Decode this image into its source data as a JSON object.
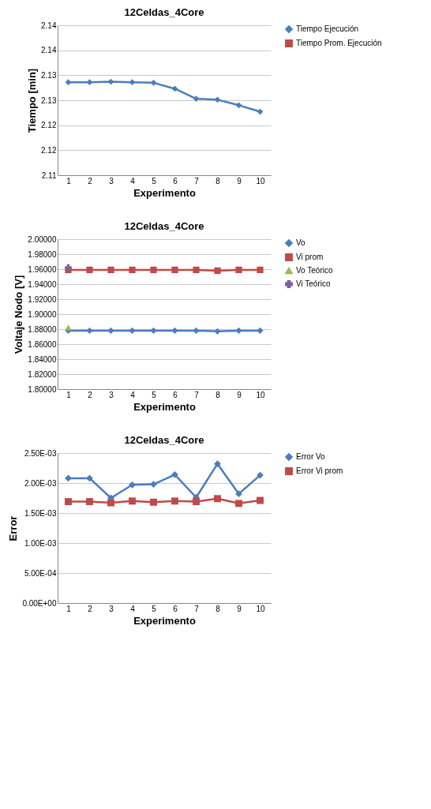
{
  "chart_data": [
    {
      "type": "line",
      "title": "12Celdas_4Core",
      "xlabel": "Experimento",
      "ylabel": "Tiempo [min]",
      "categories": [
        "1",
        "2",
        "3",
        "4",
        "5",
        "6",
        "7",
        "8",
        "9",
        "10"
      ],
      "ylim": [
        2.11,
        2.14
      ],
      "yticks": [
        {
          "value": 2.11,
          "label": "2.11"
        },
        {
          "value": 2.115,
          "label": "2.12"
        },
        {
          "value": 2.12,
          "label": "2.12"
        },
        {
          "value": 2.125,
          "label": "2.13"
        },
        {
          "value": 2.13,
          "label": "2.13"
        },
        {
          "value": 2.135,
          "label": "2.14"
        },
        {
          "value": 2.14,
          "label": "2.14"
        }
      ],
      "grid": "y",
      "legend": "right",
      "series": [
        {
          "name": "Tiempo Ejecución",
          "color": "#4a7ebb",
          "marker": "diamond",
          "values": [
            2.1286,
            2.1286,
            2.1287,
            2.1286,
            2.1285,
            2.1273,
            2.1253,
            2.1251,
            2.124,
            2.1227
          ]
        },
        {
          "name": "Tiempo Prom. Ejecución",
          "color": "#be4b48",
          "marker": "square",
          "values": [
            null,
            null,
            null,
            null,
            null,
            null,
            null,
            null,
            null,
            null
          ]
        }
      ]
    },
    {
      "type": "line",
      "title": "12Celdas_4Core",
      "xlabel": "Experimento",
      "ylabel": "Voltaje Nodo [V]",
      "categories": [
        "1",
        "2",
        "3",
        "4",
        "5",
        "6",
        "7",
        "8",
        "9",
        "10"
      ],
      "ylim": [
        1.8,
        2.0
      ],
      "yticks": [
        {
          "value": 1.8,
          "label": "1.80000"
        },
        {
          "value": 1.82,
          "label": "1.82000"
        },
        {
          "value": 1.84,
          "label": "1.84000"
        },
        {
          "value": 1.86,
          "label": "1.86000"
        },
        {
          "value": 1.88,
          "label": "1.88000"
        },
        {
          "value": 1.9,
          "label": "1.90000"
        },
        {
          "value": 1.92,
          "label": "1.92000"
        },
        {
          "value": 1.94,
          "label": "1.94000"
        },
        {
          "value": 1.96,
          "label": "1.96000"
        },
        {
          "value": 1.98,
          "label": "1.98000"
        },
        {
          "value": 2.0,
          "label": "2.00000"
        }
      ],
      "grid": "y",
      "legend": "right",
      "series": [
        {
          "name": "Vo",
          "color": "#4a7ebb",
          "marker": "diamond",
          "values": [
            1.878,
            1.878,
            1.878,
            1.878,
            1.878,
            1.878,
            1.878,
            1.877,
            1.878,
            1.878
          ]
        },
        {
          "name": "Vi prom",
          "color": "#be4b48",
          "marker": "square",
          "values": [
            1.959,
            1.959,
            1.959,
            1.959,
            1.959,
            1.959,
            1.959,
            1.958,
            1.959,
            1.959
          ]
        },
        {
          "name": "Vo Teórico",
          "color": "#98b954",
          "marker": "triangle",
          "values": [
            1.882,
            null,
            null,
            null,
            null,
            null,
            null,
            null,
            null,
            null
          ]
        },
        {
          "name": "Vi Teórico",
          "color": "#7d60a0",
          "marker": "cross",
          "values": [
            1.962,
            null,
            null,
            null,
            null,
            null,
            null,
            null,
            null,
            null
          ]
        }
      ]
    },
    {
      "type": "line",
      "title": "12Celdas_4Core",
      "xlabel": "Experimento",
      "ylabel": "Error",
      "categories": [
        "1",
        "2",
        "3",
        "4",
        "5",
        "6",
        "7",
        "8",
        "9",
        "10"
      ],
      "ylim": [
        0,
        0.0025
      ],
      "yticks": [
        {
          "value": 0,
          "label": "0.00E+00"
        },
        {
          "value": 0.0005,
          "label": "5.00E-04"
        },
        {
          "value": 0.001,
          "label": "1.00E-03"
        },
        {
          "value": 0.0015,
          "label": "1.50E-03"
        },
        {
          "value": 0.002,
          "label": "2.00E-03"
        },
        {
          "value": 0.0025,
          "label": "2.50E-03"
        }
      ],
      "grid": "y",
      "legend": "right",
      "series": [
        {
          "name": "Error Vo",
          "color": "#4a7ebb",
          "marker": "diamond",
          "values": [
            0.00208,
            0.00208,
            0.00175,
            0.00197,
            0.00198,
            0.00214,
            0.00176,
            0.00232,
            0.00182,
            0.00213
          ]
        },
        {
          "name": "Error Vi prom",
          "color": "#be4b48",
          "marker": "square",
          "values": [
            0.00169,
            0.00169,
            0.00167,
            0.0017,
            0.00168,
            0.0017,
            0.00169,
            0.00174,
            0.00166,
            0.00171
          ]
        }
      ]
    }
  ]
}
